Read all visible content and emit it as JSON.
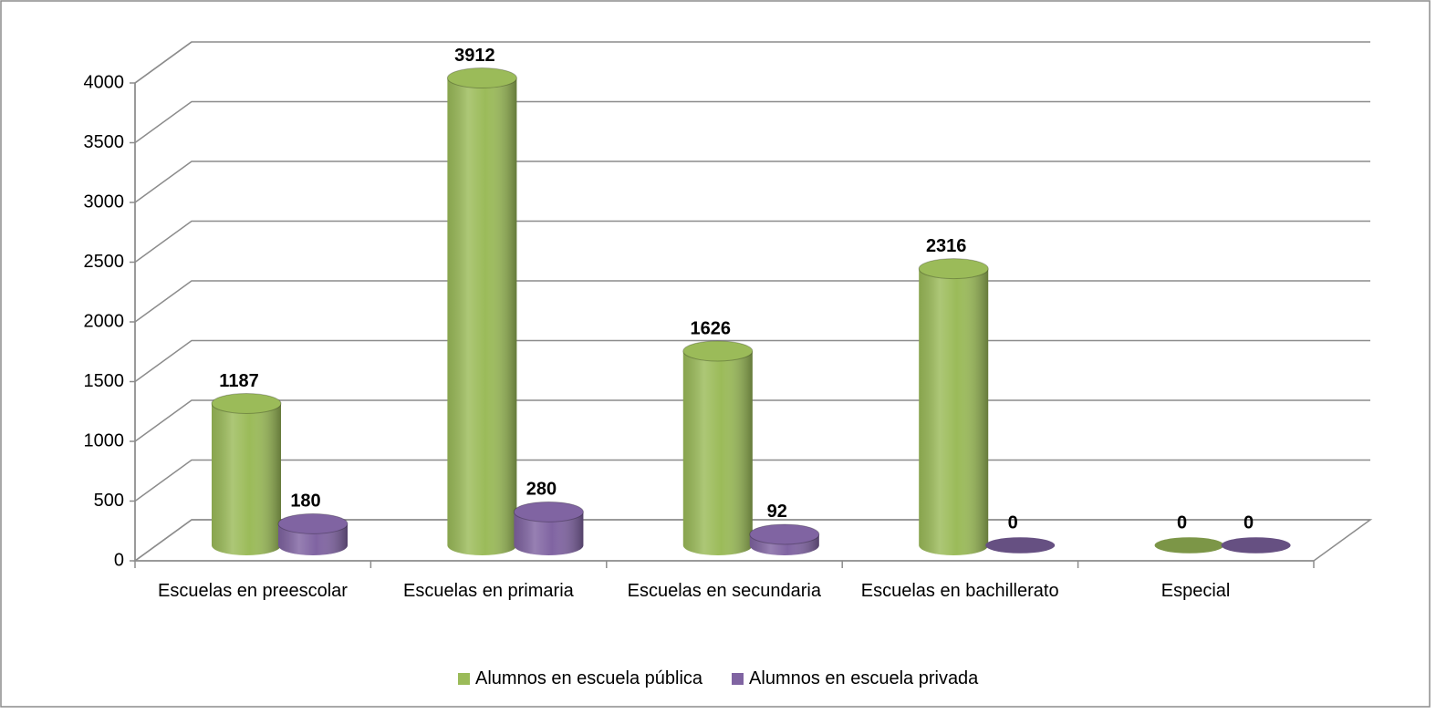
{
  "chart_data": {
    "type": "bar3d",
    "categories": [
      "Escuelas en preescolar",
      "Escuelas en primaria",
      "Escuelas en secundaria",
      "Escuelas en bachillerato",
      "Especial"
    ],
    "series": [
      {
        "name": "Alumnos en escuela pública",
        "color": "#9bbb59",
        "values": [
          1187,
          3912,
          1626,
          2316,
          0
        ]
      },
      {
        "name": "Alumnos en escuela privada",
        "color": "#8064a2",
        "values": [
          180,
          280,
          92,
          0,
          0
        ]
      }
    ],
    "ylim": [
      0,
      4000
    ],
    "yticks": [
      0,
      500,
      1000,
      1500,
      2000,
      2500,
      3000,
      3500,
      4000
    ],
    "grid": true,
    "legend": "bottom"
  }
}
